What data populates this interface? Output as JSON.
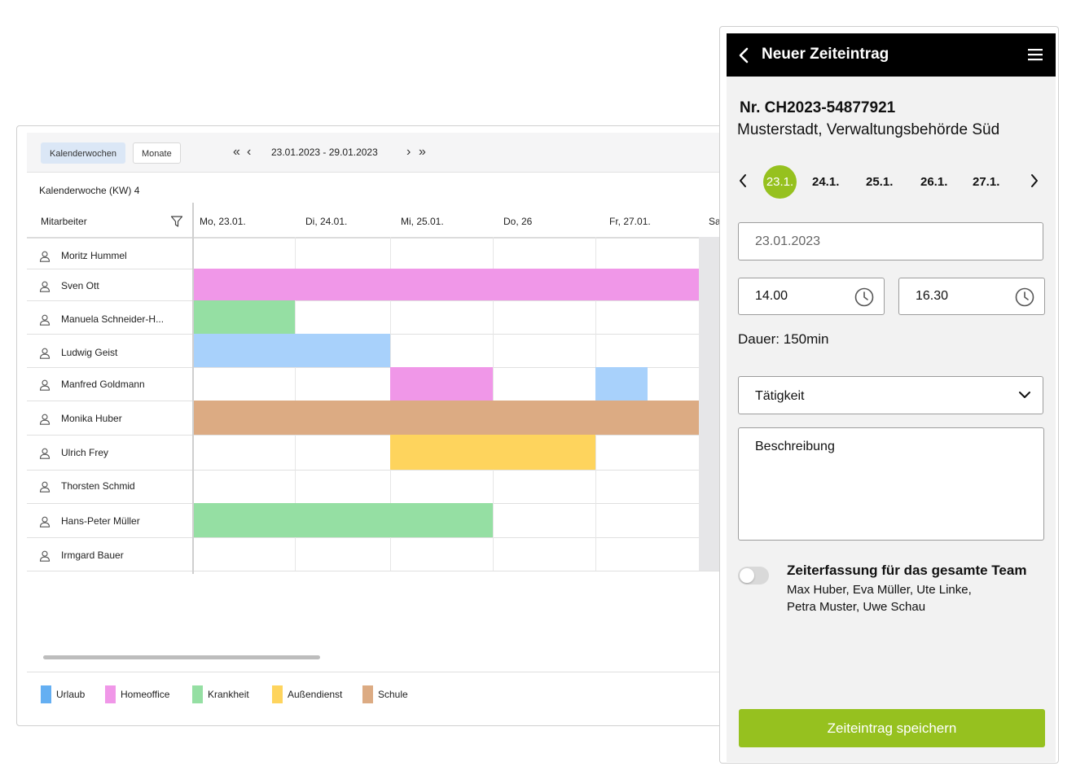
{
  "calendar": {
    "view_weeks": "Kalenderwochen",
    "view_months": "Monate",
    "nav_first": "«",
    "nav_prev": "‹",
    "nav_next": "›",
    "nav_last": "»",
    "date_range": "23.01.2023 - 29.01.2023",
    "week_label": "Kalenderwoche (KW) 4",
    "employee_header": "Mitarbeiter",
    "days": [
      "Mo, 23.01.",
      "Di, 24.01.",
      "Mi, 25.01.",
      "Do, 26",
      "Fr, 27.01.",
      "Sa"
    ],
    "employees": [
      {
        "name": "Moritz Hummel"
      },
      {
        "name": "Sven Ott"
      },
      {
        "name": "Manuela Schneider-H..."
      },
      {
        "name": "Ludwig Geist"
      },
      {
        "name": "Manfred Goldmann"
      },
      {
        "name": "Monika Huber"
      },
      {
        "name": "Ulrich Frey"
      },
      {
        "name": "Thorsten Schmid"
      },
      {
        "name": "Hans-Peter Müller"
      },
      {
        "name": "Irmgard Bauer"
      }
    ],
    "absences": [
      {
        "employee": "Sven Ott",
        "type": "Homeoffice",
        "start_day": 0,
        "days": 5
      },
      {
        "employee": "Manuela Schneider-H...",
        "type": "Krankheit",
        "start_day": 0,
        "days": 1
      },
      {
        "employee": "Ludwig Geist",
        "type": "Urlaub",
        "start_day": 0,
        "days": 2
      },
      {
        "employee": "Manfred Goldmann",
        "type": "Homeoffice",
        "start_day": 2,
        "days": 1
      },
      {
        "employee": "Manfred Goldmann",
        "type": "Urlaub",
        "start_day": 4,
        "days": 0.5
      },
      {
        "employee": "Monika Huber",
        "type": "Schule",
        "start_day": 0,
        "days": 5
      },
      {
        "employee": "Ulrich Frey",
        "type": "Außendienst",
        "start_day": 2,
        "days": 2
      },
      {
        "employee": "Hans-Peter Müller",
        "type": "Krankheit",
        "start_day": 0,
        "days": 3
      }
    ],
    "legend": [
      {
        "label": "Urlaub",
        "color": "#64aff2"
      },
      {
        "label": "Homeoffice",
        "color": "#f097e8"
      },
      {
        "label": "Krankheit",
        "color": "#95dfa3"
      },
      {
        "label": "Außendienst",
        "color": "#fed45d"
      },
      {
        "label": "Schule",
        "color": "#dcab83"
      }
    ],
    "bar_colors": {
      "Urlaub": "#a8d1fb",
      "Homeoffice": "#f097e8",
      "Krankheit": "#95dfa3",
      "Außendienst": "#fed45d",
      "Schule": "#dcab83"
    }
  },
  "mobile": {
    "title": "Neuer Zeiteintrag",
    "order_nr": "Nr. CH2023-54877921",
    "location": "Musterstadt, Verwaltungsbehörde Süd",
    "dates": [
      "23.1.",
      "24.1.",
      "25.1.",
      "26.1.",
      "27.1."
    ],
    "selected_date_index": 0,
    "date_value": "23.01.2023",
    "time_from": "14.00",
    "time_to": "16.30",
    "duration": "Dauer: 150min",
    "activity_placeholder": "Tätigkeit",
    "description_placeholder": "Beschreibung",
    "team_toggle_on": false,
    "team_title": "Zeiterfassung für das gesamte Team",
    "team_members_line1": "Max Huber, Eva Müller, Ute Linke,",
    "team_members_line2": "Petra Muster, Uwe Schau",
    "save_label": "Zeiteintrag speichern",
    "accent_color": "#96c11f"
  }
}
